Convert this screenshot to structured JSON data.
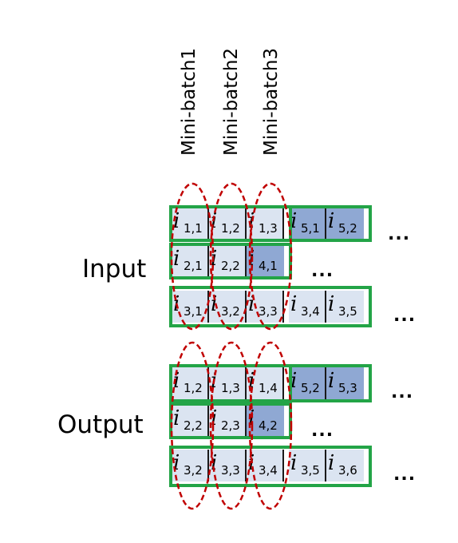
{
  "column_labels": [
    "Mini-batch1",
    "Mini-batch2",
    "Mini-batch3"
  ],
  "input": {
    "label": "Input",
    "row1": [
      [
        "i",
        "1,1"
      ],
      [
        "i",
        "1,2"
      ],
      [
        "i",
        "1,3"
      ],
      [
        "i",
        "5,1"
      ],
      [
        "i",
        "5,2"
      ]
    ],
    "row2": [
      [
        "i",
        "2,1"
      ],
      [
        "i",
        "2,2"
      ],
      [
        "i",
        "4,1"
      ]
    ],
    "row3": [
      [
        "i",
        "3,1"
      ],
      [
        "i",
        "3,2"
      ],
      [
        "i",
        "3,3"
      ],
      [
        "i",
        "3,4"
      ],
      [
        "i",
        "3,5"
      ]
    ],
    "ellipsis": [
      "...",
      "...",
      "..."
    ]
  },
  "output": {
    "label": "Output",
    "row1": [
      [
        "i",
        "1,2"
      ],
      [
        "i",
        "1,3"
      ],
      [
        "i",
        "1,4"
      ],
      [
        "i",
        "5,2"
      ],
      [
        "i",
        "5,3"
      ]
    ],
    "row2": [
      [
        "i",
        "2,2"
      ],
      [
        "i",
        "2,3"
      ],
      [
        "i",
        "4,2"
      ]
    ],
    "row3": [
      [
        "i",
        "3,2"
      ],
      [
        "i",
        "3,3"
      ],
      [
        "i",
        "3,4"
      ],
      [
        "i",
        "3,5"
      ],
      [
        "i",
        "3,6"
      ]
    ],
    "ellipsis": [
      "...",
      "...",
      "..."
    ]
  },
  "colors": {
    "light_cell": "#dbe4f1",
    "dark_cell": "#8fa8d3",
    "group_border": "#23a447",
    "oval": "#c00000"
  }
}
